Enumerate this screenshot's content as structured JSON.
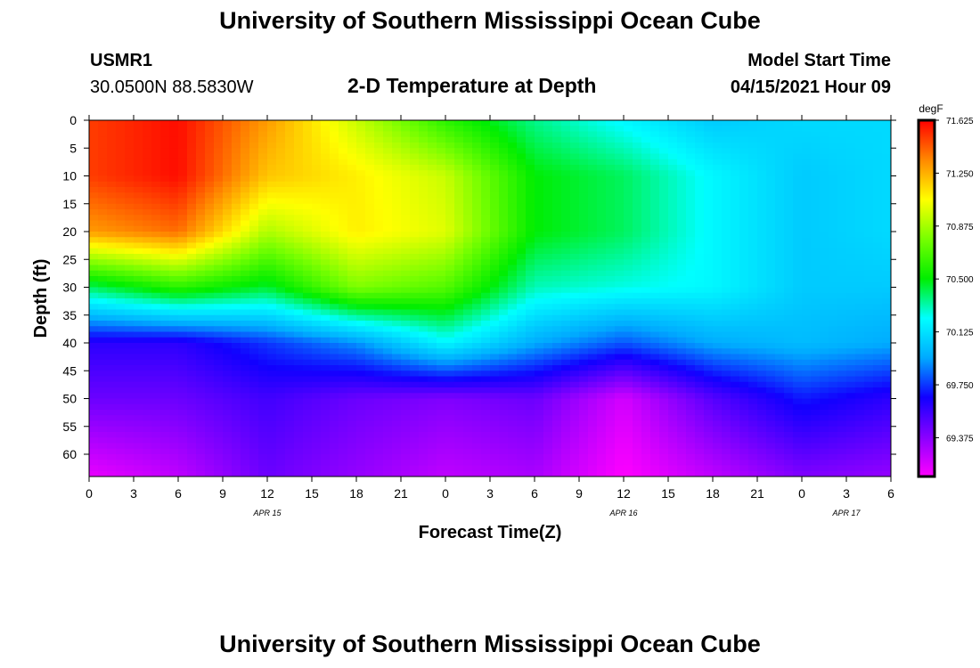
{
  "page": {
    "title_top": "University of Southern Mississippi Ocean Cube",
    "title_bottom": "University of Southern Mississippi Ocean Cube",
    "station_id": "USMR1",
    "station_coords": "30.0500N  88.5830W",
    "plot_title": "2-D Temperature at Depth",
    "model_start_label": "Model Start Time",
    "model_start_value": "04/15/2021 Hour 09"
  },
  "chart_data": {
    "type": "heatmap",
    "title": "2-D Temperature at Depth",
    "xlabel": "Forecast Time(Z)",
    "ylabel": "Depth (ft)",
    "x_ticks": [
      "0",
      "3",
      "6",
      "9",
      "12",
      "15",
      "18",
      "21",
      "0",
      "3",
      "6",
      "9",
      "12",
      "15",
      "18",
      "21",
      "0",
      "3",
      "6"
    ],
    "date_labels": [
      {
        "label": "APR 15",
        "at_tick": 4
      },
      {
        "label": "APR 16",
        "at_tick": 12
      },
      {
        "label": "APR 17",
        "at_tick": 17
      }
    ],
    "y_ticks": [
      0,
      5,
      10,
      15,
      20,
      25,
      30,
      35,
      40,
      45,
      50,
      55,
      60
    ],
    "ylim": [
      0,
      64
    ],
    "xlim_hours": [
      0,
      54
    ],
    "colorbar": {
      "units": "degF",
      "min": 69.1,
      "max": 71.625,
      "ticks": [
        "71.625",
        "71.250",
        "70.875",
        "70.500",
        "70.125",
        "69.750",
        "69.375"
      ],
      "colors": [
        "#ff00ff",
        "#8800ff",
        "#1100ff",
        "#00aaff",
        "#00ffff",
        "#00ee00",
        "#77ff00",
        "#ffff00",
        "#ff8800",
        "#ff0000"
      ]
    },
    "forecast_hours": [
      0,
      6,
      12,
      18,
      24,
      30,
      36,
      42,
      48,
      54
    ],
    "depths_ft": [
      0,
      10,
      20,
      30,
      40,
      50,
      64
    ],
    "temperature_degF": [
      [
        71.5,
        71.6,
        71.3,
        70.95,
        70.6,
        70.35,
        70.2,
        70.05,
        70.1,
        70.1
      ],
      [
        71.5,
        71.6,
        71.2,
        71.1,
        70.95,
        70.5,
        70.4,
        70.2,
        70.05,
        70.1
      ],
      [
        71.3,
        71.4,
        70.9,
        71.1,
        71.0,
        70.5,
        70.4,
        70.2,
        70.05,
        70.1
      ],
      [
        70.4,
        70.6,
        70.45,
        70.8,
        70.7,
        70.3,
        70.25,
        70.2,
        70.05,
        70.05
      ],
      [
        69.6,
        69.6,
        69.75,
        69.9,
        70.2,
        69.95,
        69.8,
        69.95,
        70.0,
        69.95
      ],
      [
        69.45,
        69.45,
        69.55,
        69.45,
        69.4,
        69.45,
        69.2,
        69.5,
        69.7,
        69.6
      ],
      [
        69.15,
        69.25,
        69.45,
        69.35,
        69.25,
        69.3,
        69.1,
        69.25,
        69.4,
        69.35
      ]
    ]
  }
}
